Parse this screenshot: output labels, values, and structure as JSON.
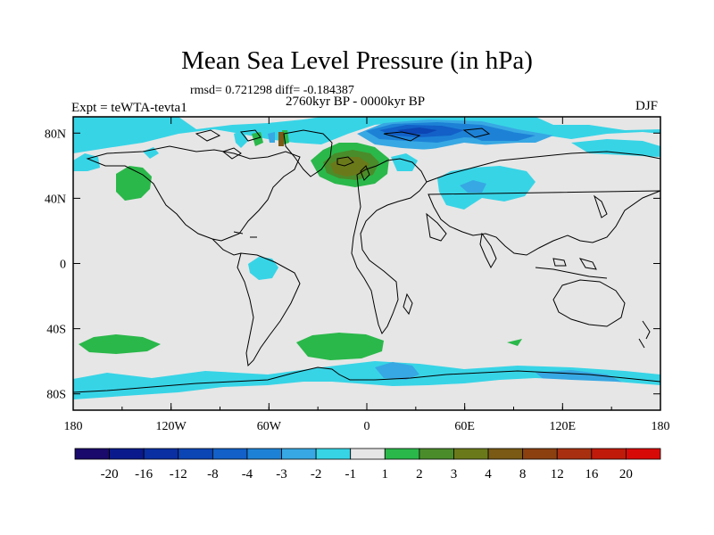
{
  "title": "Mean Sea Level Pressure (in hPa)",
  "stats_text": "rmsd= 0.721298 diff= -0.184387",
  "period_text": "2760kyr BP - 0000kyr BP",
  "experiment_text": "Expt = teWTA-tevta1",
  "season_text": "DJF",
  "map": {
    "projection": "cylindrical equidistant",
    "lon_range": [
      -180,
      180
    ],
    "lat_range": [
      -90,
      90
    ],
    "x_tick_labels": [
      "180",
      "120W",
      "60W",
      "0",
      "60E",
      "120E",
      "180"
    ],
    "y_tick_labels": [
      "80N",
      "40N",
      "0",
      "40S",
      "80S"
    ],
    "background_class": "-1 to 1",
    "background_color": "#e6e6e6"
  },
  "colorbar": {
    "colors": [
      "#1a0a6b",
      "#0a1a8c",
      "#0a2fa3",
      "#0c45b4",
      "#1260c8",
      "#1d82d6",
      "#37a8e3",
      "#37d4e6",
      "#e6e6e6",
      "#2ab84a",
      "#4a8c2a",
      "#6a7a1a",
      "#7a5a14",
      "#8c4010",
      "#a83010",
      "#c01a0a",
      "#d80a08"
    ],
    "labels": [
      "-20",
      "-16",
      "-12",
      "-8",
      "-4",
      "-3",
      "-2",
      "-1",
      "1",
      "2",
      "3",
      "4",
      "8",
      "12",
      "16",
      "20"
    ]
  },
  "anomaly_regions": [
    {
      "name": "north-pacific-positive",
      "class": "2"
    },
    {
      "name": "south-pacific-positive",
      "class": "2"
    },
    {
      "name": "south-atlantic-positive",
      "class": "2"
    },
    {
      "name": "greenland-iceland-positive",
      "class": "3-4"
    },
    {
      "name": "arctic-siberia-negative",
      "class": "-4 to -8"
    },
    {
      "name": "central-asia-negative",
      "class": "-1 to -2"
    },
    {
      "name": "amazon-negative",
      "class": "-1"
    },
    {
      "name": "southern-ocean-negative",
      "class": "-1 to -2"
    }
  ]
}
